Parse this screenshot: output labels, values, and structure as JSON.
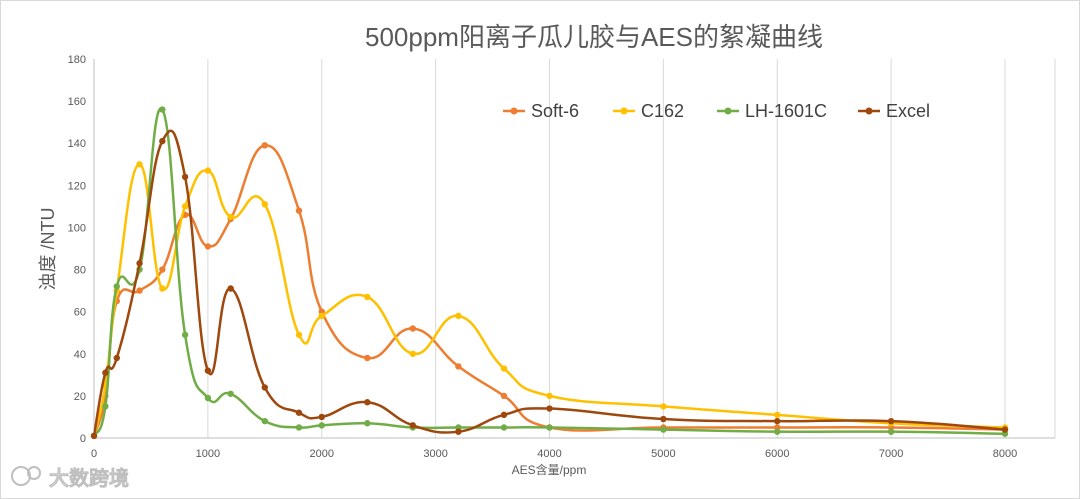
{
  "chart_data": {
    "type": "line",
    "title": "500ppm阳离子瓜儿胶与AES的絮凝曲线",
    "xlabel": "AES含量/ppm",
    "ylabel": "浊度 /NTU",
    "xlim": [
      0,
      8000
    ],
    "ylim": [
      0,
      180
    ],
    "x_ticks": [
      0,
      1000,
      2000,
      3000,
      4000,
      5000,
      6000,
      7000,
      8000
    ],
    "y_ticks": [
      0,
      20,
      40,
      60,
      80,
      100,
      120,
      140,
      160,
      180
    ],
    "grid": "vertical",
    "legend_position": "top-right",
    "series": [
      {
        "name": "Soft-6",
        "color": "#ED7D31",
        "points": [
          [
            0,
            1
          ],
          [
            100,
            20
          ],
          [
            200,
            65
          ],
          [
            400,
            70
          ],
          [
            600,
            80
          ],
          [
            800,
            106
          ],
          [
            1000,
            91
          ],
          [
            1200,
            104
          ],
          [
            1500,
            139
          ],
          [
            1800,
            108
          ],
          [
            2000,
            60
          ],
          [
            2400,
            38
          ],
          [
            2800,
            52
          ],
          [
            3200,
            34
          ],
          [
            3600,
            20
          ],
          [
            4000,
            5
          ],
          [
            5000,
            5
          ],
          [
            6000,
            5
          ],
          [
            7000,
            5
          ],
          [
            8000,
            4
          ]
        ]
      },
      {
        "name": "C162",
        "color": "#FFC000",
        "points": [
          [
            0,
            1
          ],
          [
            100,
            25
          ],
          [
            200,
            70
          ],
          [
            400,
            130
          ],
          [
            600,
            71
          ],
          [
            800,
            110
          ],
          [
            1000,
            127
          ],
          [
            1200,
            105
          ],
          [
            1500,
            111
          ],
          [
            1800,
            49
          ],
          [
            2000,
            58
          ],
          [
            2400,
            67
          ],
          [
            2800,
            40
          ],
          [
            3200,
            58
          ],
          [
            3600,
            33
          ],
          [
            4000,
            20
          ],
          [
            5000,
            15
          ],
          [
            6000,
            11
          ],
          [
            7000,
            7
          ],
          [
            8000,
            5
          ]
        ]
      },
      {
        "name": "LH-1601C",
        "color": "#70AD47",
        "points": [
          [
            0,
            1
          ],
          [
            100,
            15
          ],
          [
            200,
            72
          ],
          [
            400,
            80
          ],
          [
            600,
            156
          ],
          [
            800,
            49
          ],
          [
            1000,
            19
          ],
          [
            1200,
            21
          ],
          [
            1500,
            8
          ],
          [
            1800,
            5
          ],
          [
            2000,
            6
          ],
          [
            2400,
            7
          ],
          [
            2800,
            5
          ],
          [
            3200,
            5
          ],
          [
            3600,
            5
          ],
          [
            4000,
            5
          ],
          [
            5000,
            4
          ],
          [
            6000,
            3
          ],
          [
            7000,
            3
          ],
          [
            8000,
            2
          ]
        ]
      },
      {
        "name": "Excel",
        "color": "#9E480E",
        "points": [
          [
            0,
            1
          ],
          [
            100,
            31
          ],
          [
            200,
            38
          ],
          [
            400,
            83
          ],
          [
            600,
            141
          ],
          [
            800,
            124
          ],
          [
            1000,
            32
          ],
          [
            1200,
            71
          ],
          [
            1500,
            24
          ],
          [
            1800,
            12
          ],
          [
            2000,
            10
          ],
          [
            2400,
            17
          ],
          [
            2800,
            6
          ],
          [
            3200,
            3
          ],
          [
            3600,
            11
          ],
          [
            4000,
            14
          ],
          [
            5000,
            9
          ],
          [
            6000,
            8
          ],
          [
            7000,
            8
          ],
          [
            8000,
            4
          ]
        ]
      }
    ]
  },
  "watermark": "大数跨境"
}
